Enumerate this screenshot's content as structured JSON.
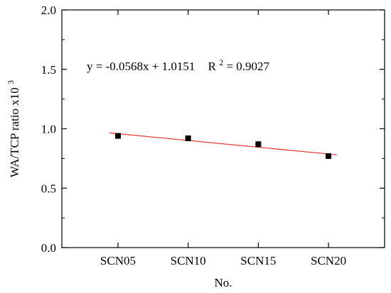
{
  "chart_data": {
    "type": "scatter",
    "title": "",
    "xlabel": "No.",
    "ylabel_main": "WA/TCP ratio x10",
    "ylabel_exponent": "3",
    "categories": [
      "SCN05",
      "SCN10",
      "SCN15",
      "SCN20"
    ],
    "x": [
      1,
      2,
      3,
      4
    ],
    "values": [
      0.94,
      0.92,
      0.87,
      0.77
    ],
    "xlim": [
      0.2,
      4.8
    ],
    "ylim": [
      0.0,
      2.0
    ],
    "yticks": [
      "0.0",
      "0.5",
      "1.0",
      "1.5",
      "2.0"
    ],
    "yticks_values": [
      0.0,
      0.5,
      1.0,
      1.5,
      2.0
    ],
    "fit": {
      "slope": -0.0568,
      "intercept": 1.0151,
      "x_start": 0.88,
      "x_end": 4.12,
      "equation_text": "y = -0.0568x + 1.0151",
      "r2_label": "R",
      "r2_exp": "2",
      "r2_value_text": " = 0.9027"
    },
    "colors": {
      "marker": "#000000",
      "fit_line": "#e8332a",
      "axis": "#000000"
    },
    "grid": false,
    "legend": "none"
  }
}
